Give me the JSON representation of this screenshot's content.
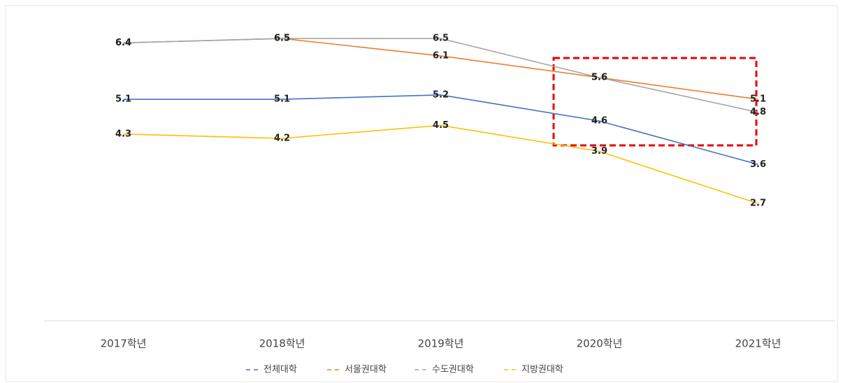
{
  "chart_data": {
    "type": "line",
    "categories": [
      "2017학년",
      "2018학년",
      "2019학년",
      "2020학년",
      "2021학년"
    ],
    "series": [
      {
        "name": "전체대학",
        "color": "#4472c4",
        "values": [
          5.1,
          5.1,
          5.2,
          4.6,
          3.6
        ]
      },
      {
        "name": "서울권대학",
        "color": "#ed7d31",
        "values": [
          6.4,
          6.5,
          6.1,
          5.6,
          5.1
        ]
      },
      {
        "name": "수도권대학",
        "color": "#a5a5a5",
        "values": [
          6.4,
          6.5,
          6.5,
          5.6,
          4.8
        ]
      },
      {
        "name": "지방권대학",
        "color": "#ffc000",
        "values": [
          4.3,
          4.2,
          4.5,
          3.9,
          2.7
        ]
      }
    ],
    "ylim": [
      0,
      7
    ],
    "legend": "bottom"
  }
}
